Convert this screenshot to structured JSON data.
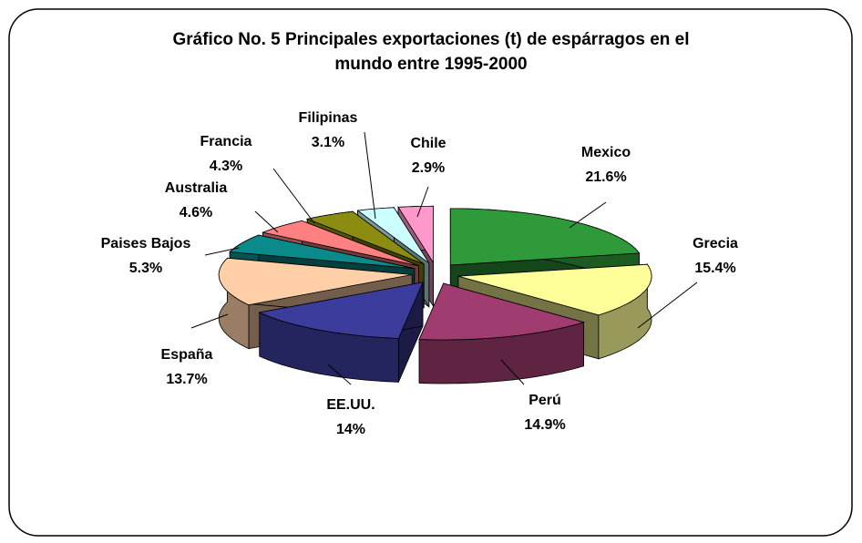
{
  "chart_data": {
    "type": "pie",
    "title": "Gráfico No. 5 Principales exportaciones (t) de espárragos en el mundo entre 1995-2000",
    "categories": [
      "Mexico",
      "Grecia",
      "Perú",
      "EE.UU.",
      "España",
      "Paises Bajos",
      "Australia",
      "Francia",
      "Filipinas",
      "Chile"
    ],
    "values": [
      21.6,
      15.4,
      14.9,
      14,
      13.7,
      5.3,
      4.6,
      4.3,
      3.1,
      2.9
    ],
    "value_labels": [
      "21.6%",
      "15.4%",
      "14.9%",
      "14%",
      "13.7%",
      "5.3%",
      "4.6%",
      "4.3%",
      "3.1%",
      "2.9%"
    ],
    "colors": [
      "#2f9a3a",
      "#ffff99",
      "#a03c70",
      "#3c3c9c",
      "#ffd0a8",
      "#0a8a8a",
      "#ff8080",
      "#8c8c10",
      "#ccffff",
      "#ff99cc"
    ]
  }
}
